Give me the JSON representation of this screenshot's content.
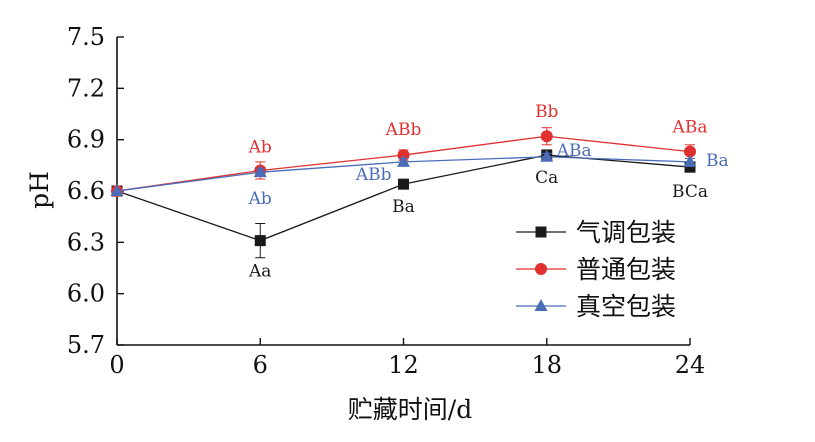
{
  "chart_data": {
    "type": "line",
    "xlabel": "贮藏时间/d",
    "ylabel": "pH",
    "x": [
      0,
      6,
      12,
      18,
      24
    ],
    "xlim": [
      0,
      24
    ],
    "ylim": [
      5.7,
      7.5
    ],
    "yticks": [
      "5.7",
      "6.0",
      "6.3",
      "6.6",
      "6.9",
      "7.2",
      "7.5"
    ],
    "xticks": [
      "0",
      "6",
      "12",
      "18",
      "24"
    ],
    "grid": false,
    "legend_position": "bottom-right",
    "series": [
      {
        "name": "气调包装",
        "color": "#1a1a1a",
        "marker": "square",
        "values": [
          6.6,
          6.31,
          6.64,
          6.81,
          6.74
        ],
        "errors": [
          0.01,
          0.1,
          0.01,
          0.03,
          0.03
        ],
        "labels": [
          "",
          "Aa",
          "Ba",
          "Ca",
          "BCa"
        ]
      },
      {
        "name": "普通包装",
        "color": "#e03030",
        "marker": "circle",
        "values": [
          6.6,
          6.72,
          6.81,
          6.92,
          6.83
        ],
        "errors": [
          0.01,
          0.05,
          0.03,
          0.05,
          0.04
        ],
        "labels": [
          "",
          "Ab",
          "ABb",
          "Bb",
          "ABa"
        ]
      },
      {
        "name": "真空包装",
        "color": "#4b6cb7",
        "marker": "triangle",
        "values": [
          6.6,
          6.71,
          6.77,
          6.8,
          6.77
        ],
        "errors": [
          0.01,
          0.02,
          0.02,
          0.02,
          0.02
        ],
        "labels": [
          "",
          "Ab",
          "ABb",
          "ABa",
          "Ba"
        ]
      }
    ]
  }
}
